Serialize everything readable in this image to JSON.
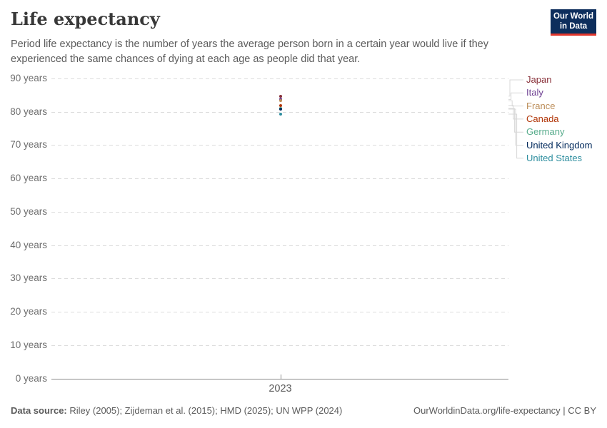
{
  "header": {
    "title": "Life expectancy",
    "subtitle": "Period life expectancy is the number of years the average person born in a certain year would live if they experienced the same chances of dying at each age as people did that year.",
    "logo": {
      "line1": "Our World",
      "line2": "in Data",
      "bg_color": "#0D2E5C",
      "accent_color": "#E0362C"
    }
  },
  "chart_data": {
    "type": "scatter",
    "title": "Life expectancy",
    "x": [
      2023
    ],
    "x_tick_label": "2023",
    "xlabel": "",
    "ylabel": "",
    "y_axis": {
      "min": 0,
      "max": 90,
      "step": 10,
      "tick_suffix": " years"
    },
    "ylim": [
      0,
      90
    ],
    "grid": "horizontal-dashed",
    "legend_position": "right",
    "series": [
      {
        "name": "Japan",
        "color": "#883039",
        "values": [
          84.7
        ]
      },
      {
        "name": "Italy",
        "color": "#6D3E91",
        "values": [
          83.7
        ]
      },
      {
        "name": "France",
        "color": "#BC8E5A",
        "values": [
          83.3
        ]
      },
      {
        "name": "Canada",
        "color": "#B13507",
        "values": [
          81.9
        ]
      },
      {
        "name": "Germany",
        "color": "#58AC8C",
        "values": [
          81.0
        ]
      },
      {
        "name": "United Kingdom",
        "color": "#00295B",
        "values": [
          80.8
        ]
      },
      {
        "name": "United States",
        "color": "#2E8E9F",
        "values": [
          79.3
        ]
      }
    ]
  },
  "footer": {
    "source_label": "Data source:",
    "source_text": "Riley (2005); Zijdeman et al. (2015); HMD (2025); UN WPP (2024)",
    "credit": "OurWorldinData.org/life-expectancy | CC BY"
  }
}
